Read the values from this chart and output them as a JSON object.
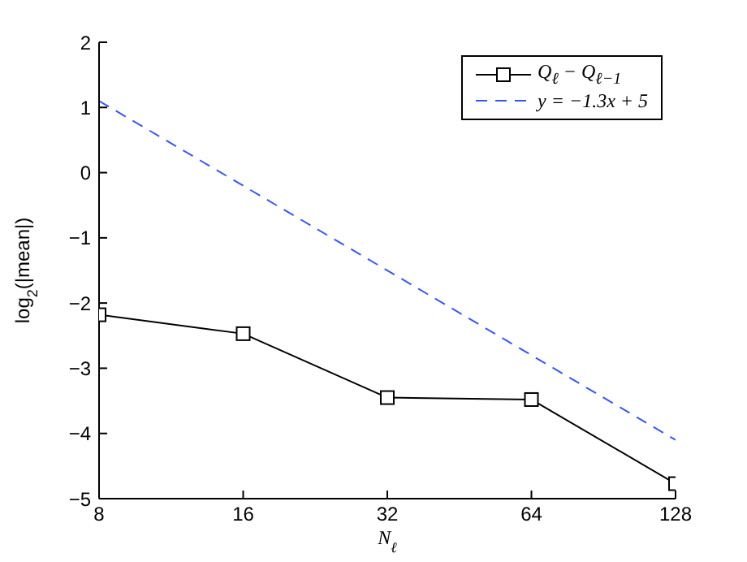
{
  "chart_data": {
    "type": "line",
    "xlabel": "N$_{ℓ}$",
    "ylabel": "log$_{2}$(|mean|)",
    "log": "x",
    "x": [
      8,
      16,
      32,
      64,
      128
    ],
    "xlim": [
      8,
      128
    ],
    "xticks": [
      8,
      16,
      32,
      64,
      128
    ],
    "ylim": [
      -5,
      2
    ],
    "yticks": [
      -5,
      -4,
      -3,
      -2,
      -1,
      0,
      1,
      2
    ],
    "grid": false,
    "legend": "top right",
    "series": [
      {
        "name": "Q$_{ℓ}$ − Q$_{ℓ−1}$",
        "color": "#000000",
        "values": [
          -2.18,
          -2.47,
          -3.45,
          -3.48,
          -4.77
        ],
        "marker": "square",
        "line_style": "solid"
      },
      {
        "name": "y = −1.3x + 5",
        "color": "#3355ff",
        "x": [
          8,
          128
        ],
        "values": [
          1.1,
          -4.1
        ],
        "marker": "none",
        "line_style": "dashed"
      }
    ]
  }
}
